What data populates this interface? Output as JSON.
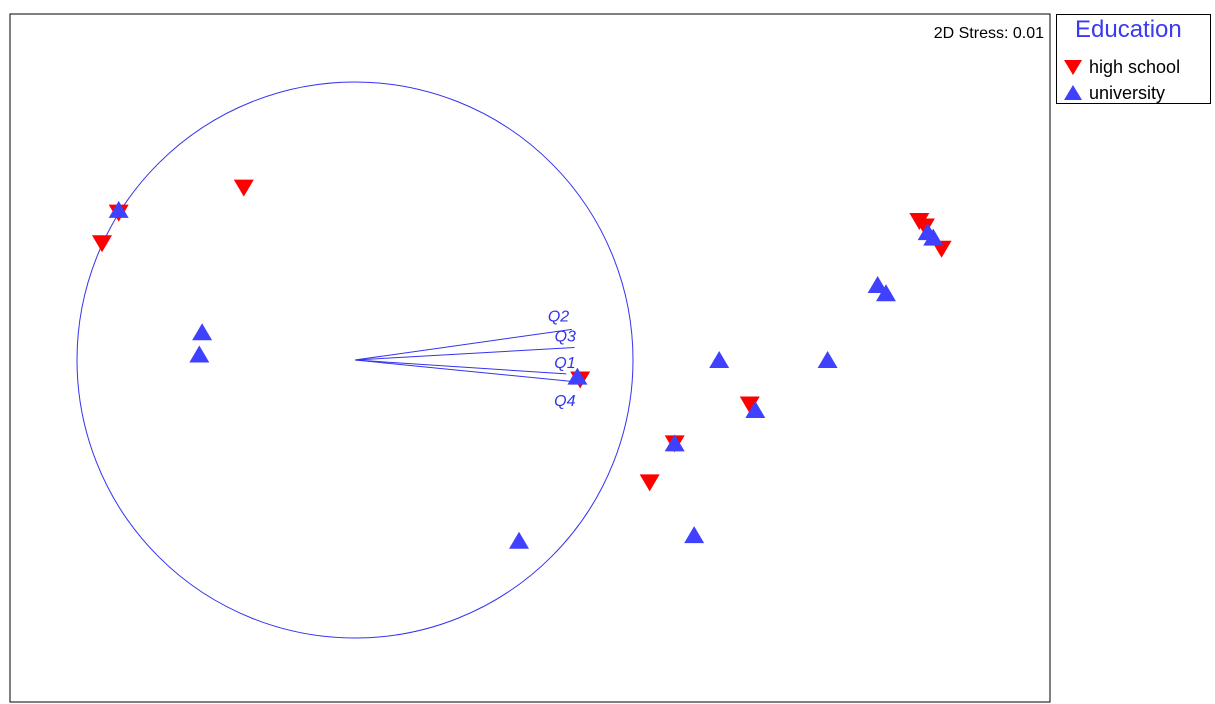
{
  "chart_data": {
    "type": "scatter",
    "stress_label": "2D Stress: 0.01",
    "legend": {
      "title": "Education",
      "entries": [
        {
          "name": "high school",
          "marker": "triangle-down",
          "color": "#ff0000"
        },
        {
          "name": "university",
          "marker": "triangle-up",
          "color": "#4040ff"
        }
      ]
    },
    "circle": {
      "cx": 0,
      "cy": 0,
      "r": 1.0,
      "color": "#3333ee"
    },
    "vectors": [
      {
        "name": "Q2",
        "x": 0.78,
        "y": 0.11
      },
      {
        "name": "Q3",
        "x": 0.79,
        "y": 0.045
      },
      {
        "name": "Q1",
        "x": 0.76,
        "y": -0.05
      },
      {
        "name": "Q4",
        "x": 0.81,
        "y": -0.08
      }
    ],
    "series": [
      {
        "name": "high school",
        "color": "#ff0000",
        "marker": "triangle-down",
        "points": [
          {
            "x": -0.85,
            "y": 0.53
          },
          {
            "x": -0.91,
            "y": 0.42
          },
          {
            "x": -0.4,
            "y": 0.62
          },
          {
            "x": 0.81,
            "y": -0.07
          },
          {
            "x": 1.15,
            "y": -0.3
          },
          {
            "x": 1.06,
            "y": -0.44
          },
          {
            "x": 1.42,
            "y": -0.16
          },
          {
            "x": 2.03,
            "y": 0.5
          },
          {
            "x": 2.05,
            "y": 0.48
          },
          {
            "x": 2.11,
            "y": 0.4
          }
        ]
      },
      {
        "name": "university",
        "color": "#4040ff",
        "marker": "triangle-up",
        "points": [
          {
            "x": -0.85,
            "y": 0.54
          },
          {
            "x": -0.55,
            "y": 0.1
          },
          {
            "x": -0.56,
            "y": 0.02
          },
          {
            "x": 0.8,
            "y": -0.06
          },
          {
            "x": 1.15,
            "y": -0.3
          },
          {
            "x": 1.22,
            "y": -0.63
          },
          {
            "x": 0.59,
            "y": -0.65
          },
          {
            "x": 1.31,
            "y": 0.0
          },
          {
            "x": 1.44,
            "y": -0.18
          },
          {
            "x": 1.7,
            "y": 0.0
          },
          {
            "x": 1.88,
            "y": 0.27
          },
          {
            "x": 1.91,
            "y": 0.24
          },
          {
            "x": 2.06,
            "y": 0.46
          },
          {
            "x": 2.08,
            "y": 0.44
          }
        ]
      }
    ]
  }
}
